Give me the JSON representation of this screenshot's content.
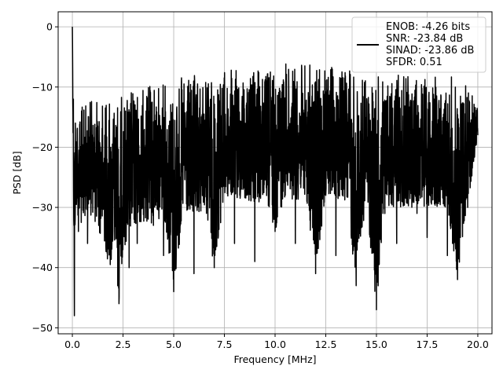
{
  "chart_data": {
    "type": "line",
    "title": "",
    "xlabel": "Frequency [MHz]",
    "ylabel": "PSD [dB]",
    "xlim": [
      -0.7,
      20.7
    ],
    "ylim": [
      -51,
      2.5
    ],
    "xticks": [
      0.0,
      2.5,
      5.0,
      7.5,
      10.0,
      12.5,
      15.0,
      17.5,
      20.0
    ],
    "xtick_labels": [
      "0.0",
      "2.5",
      "5.0",
      "7.5",
      "10.0",
      "12.5",
      "15.0",
      "17.5",
      "20.0"
    ],
    "yticks": [
      0,
      -10,
      -20,
      -30,
      -40,
      -50
    ],
    "ytick_labels": [
      "0",
      "−10",
      "−20",
      "−30",
      "−40",
      "−50"
    ],
    "grid": true,
    "legend": {
      "placement": "top-right",
      "entries": [
        "ENOB: -4.26 bits",
        "SNR: -23.84 dB",
        "SINAD: -23.86 dB",
        "SFDR: 0.51"
      ]
    },
    "series": [
      {
        "color": "#000000",
        "x": [
          0.0,
          0.05,
          0.1,
          0.15,
          0.3,
          0.5,
          0.75,
          1.0,
          1.3,
          1.6,
          1.9,
          2.1,
          2.3,
          2.5,
          2.8,
          3.2,
          3.6,
          4.0,
          4.5,
          5.0,
          5.5,
          6.0,
          6.5,
          7.0,
          7.5,
          8.0,
          8.5,
          9.0,
          9.5,
          10.0,
          10.5,
          11.0,
          11.5,
          12.0,
          12.5,
          13.0,
          13.5,
          14.0,
          14.5,
          15.0,
          15.5,
          16.0,
          16.5,
          17.0,
          17.5,
          18.0,
          18.5,
          19.0,
          19.5,
          20.0
        ],
        "y": [
          0,
          -12,
          -48,
          -16,
          -34,
          -20,
          -36,
          -18,
          -33,
          -18,
          -37,
          -23,
          -46,
          -28,
          -40,
          -36,
          -20,
          -33,
          -38,
          -44,
          -23,
          -41,
          -25,
          -40,
          -18,
          -36,
          -24,
          -39,
          -20,
          -34,
          -28,
          -36,
          -22,
          -41,
          -28,
          -38,
          -25,
          -43,
          -19,
          -47,
          -24,
          -36,
          -22,
          -31,
          -35,
          -25,
          -38,
          -42,
          -30,
          -18
        ],
        "y_upper": [
          0,
          -11,
          -13,
          -12,
          -12,
          -13,
          -12,
          -12,
          -12,
          -11,
          -11,
          -11,
          -10,
          -12,
          -10,
          -10,
          -10,
          -9,
          -9,
          -9,
          -8,
          -8,
          -8,
          -8,
          -7,
          -7,
          -7,
          -7,
          -7,
          -6,
          -6,
          -6,
          -6,
          -6,
          -6,
          -7,
          -6,
          -7,
          -8,
          -8,
          -8,
          -8,
          -8,
          -8,
          -8,
          -8,
          -8,
          -8,
          -8,
          -13
        ],
        "y_lower": [
          0,
          -27,
          -48,
          -30,
          -32,
          -34,
          -30,
          -32,
          -34,
          -37,
          -41,
          -37,
          -46,
          -37,
          -35,
          -33,
          -33,
          -33,
          -31,
          -44,
          -31,
          -33,
          -30,
          -40,
          -29,
          -29,
          -29,
          -30,
          -29,
          -34,
          -28,
          -29,
          -28,
          -41,
          -28,
          -29,
          -29,
          -43,
          -29,
          -47,
          -30,
          -30,
          -30,
          -30,
          -30,
          -30,
          -30,
          -42,
          -30,
          -18
        ]
      }
    ]
  }
}
